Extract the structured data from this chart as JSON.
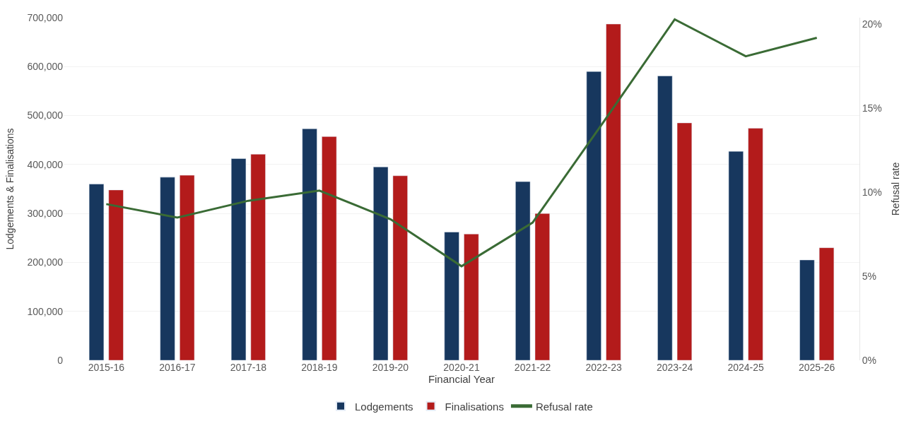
{
  "chart_data": {
    "type": "bar",
    "xlabel": "Financial Year",
    "ylabel": "Lodgements & Finalisations",
    "y2label": "Refusal rate",
    "categories": [
      "2015-16",
      "2016-17",
      "2017-18",
      "2018-19",
      "2019-20",
      "2020-21",
      "2021-22",
      "2022-23",
      "2023-24",
      "2024-25",
      "2025-26"
    ],
    "series": [
      {
        "name": "Lodgements",
        "color": "#17375e",
        "values": [
          360000,
          374000,
          412000,
          473000,
          395000,
          262000,
          365000,
          590000,
          581000,
          427000,
          205000
        ]
      },
      {
        "name": "Finalisations",
        "color": "#b31b1b",
        "values": [
          348000,
          378000,
          421000,
          457000,
          377000,
          258000,
          300000,
          687000,
          485000,
          474000,
          230000
        ]
      },
      {
        "name": "Refusal rate",
        "type": "line",
        "axis": "y2",
        "color": "#3a6b35",
        "values": [
          9.3,
          8.5,
          9.5,
          10.1,
          8.4,
          5.6,
          8.2,
          14.2,
          20.3,
          18.1,
          19.2
        ]
      }
    ],
    "ylim": [
      0,
      700000
    ],
    "yticks": [
      {
        "value": 0,
        "label": "0"
      },
      {
        "value": 100000,
        "label": "100,000"
      },
      {
        "value": 200000,
        "label": "200,000"
      },
      {
        "value": 300000,
        "label": "300,000"
      },
      {
        "value": 400000,
        "label": "400,000"
      },
      {
        "value": 500000,
        "label": "500,000"
      },
      {
        "value": 600000,
        "label": "600,000"
      },
      {
        "value": 700000,
        "label": "700,000"
      }
    ],
    "y2lim": [
      0,
      20.4
    ],
    "y2ticks": [
      {
        "value": 0,
        "label": "0%"
      },
      {
        "value": 5,
        "label": "5%"
      },
      {
        "value": 10,
        "label": "10%"
      },
      {
        "value": 15,
        "label": "15%"
      },
      {
        "value": 20,
        "label": "20%"
      }
    ],
    "grid": "y",
    "legend": "bottom",
    "marker": "none",
    "line_style": "solid"
  }
}
